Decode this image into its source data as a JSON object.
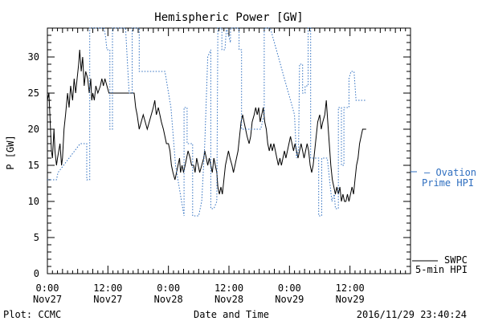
{
  "chart_data": {
    "type": "line",
    "title": "Hemispheric Power [GW]",
    "xlabel": "Date and Time",
    "ylabel": "P [GW]",
    "ylim": [
      0,
      34
    ],
    "xlim_hours": [
      0,
      72
    ],
    "yticks": [
      0,
      5,
      10,
      15,
      20,
      25,
      30
    ],
    "xticks": [
      {
        "h": 0,
        "time": "0:00",
        "date": "Nov27"
      },
      {
        "h": 12,
        "time": "12:00",
        "date": "Nov27"
      },
      {
        "h": 24,
        "time": "0:00",
        "date": "Nov28"
      },
      {
        "h": 36,
        "time": "12:00",
        "date": "Nov28"
      },
      {
        "h": 48,
        "time": "0:00",
        "date": "Nov29"
      },
      {
        "h": 60,
        "time": "12:00",
        "date": "Nov29"
      }
    ],
    "series": [
      {
        "name": "SWPC 5-min HPI",
        "color": "#000000",
        "points": [
          [
            0.0,
            24
          ],
          [
            0.3,
            25
          ],
          [
            0.5,
            22
          ],
          [
            0.8,
            17
          ],
          [
            1.0,
            16
          ],
          [
            1.3,
            20
          ],
          [
            1.5,
            17
          ],
          [
            1.8,
            15
          ],
          [
            2.0,
            16
          ],
          [
            2.5,
            18
          ],
          [
            2.8,
            15
          ],
          [
            3.0,
            16
          ],
          [
            3.3,
            20
          ],
          [
            3.6,
            22
          ],
          [
            4.0,
            25
          ],
          [
            4.3,
            23
          ],
          [
            4.6,
            26
          ],
          [
            5.0,
            24
          ],
          [
            5.3,
            27
          ],
          [
            5.6,
            25
          ],
          [
            5.9,
            27
          ],
          [
            6.2,
            29
          ],
          [
            6.4,
            31
          ],
          [
            6.7,
            28
          ],
          [
            7.0,
            30
          ],
          [
            7.3,
            26
          ],
          [
            7.6,
            28
          ],
          [
            8.0,
            27
          ],
          [
            8.3,
            25
          ],
          [
            8.6,
            27
          ],
          [
            8.8,
            24
          ],
          [
            9.0,
            25
          ],
          [
            9.3,
            24
          ],
          [
            9.6,
            26
          ],
          [
            10.0,
            25
          ],
          [
            10.5,
            26
          ],
          [
            10.8,
            27
          ],
          [
            11.1,
            26
          ],
          [
            11.4,
            27
          ],
          [
            11.8,
            26
          ],
          [
            12.2,
            25
          ],
          [
            13.5,
            25
          ],
          [
            14.5,
            25
          ],
          [
            15.5,
            25
          ],
          [
            16.5,
            25
          ],
          [
            17.2,
            25
          ],
          [
            17.5,
            23
          ],
          [
            17.8,
            22
          ],
          [
            18.2,
            20
          ],
          [
            18.6,
            21
          ],
          [
            19.0,
            22
          ],
          [
            19.4,
            21
          ],
          [
            19.8,
            20
          ],
          [
            20.2,
            21
          ],
          [
            20.6,
            22
          ],
          [
            21.0,
            23
          ],
          [
            21.3,
            24
          ],
          [
            21.6,
            22
          ],
          [
            22.0,
            23
          ],
          [
            22.3,
            22
          ],
          [
            22.6,
            21
          ],
          [
            23.0,
            20
          ],
          [
            23.3,
            19
          ],
          [
            23.6,
            18
          ],
          [
            24.0,
            18
          ],
          [
            24.3,
            17
          ],
          [
            24.6,
            15
          ],
          [
            24.9,
            14
          ],
          [
            25.3,
            13
          ],
          [
            25.6,
            14
          ],
          [
            25.9,
            15
          ],
          [
            26.2,
            16
          ],
          [
            26.4,
            14
          ],
          [
            26.7,
            15
          ],
          [
            27.0,
            14
          ],
          [
            27.3,
            15
          ],
          [
            27.6,
            16
          ],
          [
            27.9,
            17
          ],
          [
            28.3,
            16
          ],
          [
            28.6,
            15
          ],
          [
            29.0,
            15
          ],
          [
            29.3,
            14
          ],
          [
            29.6,
            16
          ],
          [
            29.9,
            15
          ],
          [
            30.2,
            14
          ],
          [
            30.6,
            15
          ],
          [
            31.0,
            16
          ],
          [
            31.2,
            17
          ],
          [
            31.5,
            16
          ],
          [
            31.8,
            15
          ],
          [
            32.1,
            16
          ],
          [
            32.4,
            15
          ],
          [
            32.7,
            14
          ],
          [
            33.0,
            16
          ],
          [
            33.3,
            15
          ],
          [
            33.6,
            14
          ],
          [
            33.8,
            12
          ],
          [
            34.1,
            11
          ],
          [
            34.4,
            12
          ],
          [
            34.7,
            11
          ],
          [
            35.0,
            13
          ],
          [
            35.3,
            15
          ],
          [
            35.6,
            16
          ],
          [
            35.9,
            17
          ],
          [
            36.2,
            16
          ],
          [
            36.6,
            15
          ],
          [
            36.9,
            14
          ],
          [
            37.2,
            15
          ],
          [
            37.5,
            16
          ],
          [
            37.8,
            17
          ],
          [
            38.1,
            19
          ],
          [
            38.4,
            21
          ],
          [
            38.7,
            22
          ],
          [
            39.0,
            21
          ],
          [
            39.3,
            20
          ],
          [
            39.6,
            19
          ],
          [
            40.0,
            18
          ],
          [
            40.3,
            19
          ],
          [
            40.6,
            21
          ],
          [
            41.0,
            22
          ],
          [
            41.3,
            23
          ],
          [
            41.6,
            22
          ],
          [
            41.9,
            23
          ],
          [
            42.2,
            21
          ],
          [
            42.5,
            22
          ],
          [
            42.8,
            23
          ],
          [
            43.1,
            21
          ],
          [
            43.4,
            20
          ],
          [
            43.7,
            18
          ],
          [
            44.0,
            17
          ],
          [
            44.3,
            18
          ],
          [
            44.6,
            17
          ],
          [
            44.9,
            18
          ],
          [
            45.2,
            17
          ],
          [
            45.5,
            16
          ],
          [
            45.8,
            15
          ],
          [
            46.1,
            16
          ],
          [
            46.4,
            15
          ],
          [
            46.7,
            16
          ],
          [
            47.0,
            17
          ],
          [
            47.3,
            16
          ],
          [
            47.6,
            17
          ],
          [
            47.9,
            18
          ],
          [
            48.2,
            19
          ],
          [
            48.5,
            18
          ],
          [
            48.8,
            17
          ],
          [
            49.1,
            18
          ],
          [
            49.4,
            17
          ],
          [
            49.7,
            16
          ],
          [
            50.0,
            17
          ],
          [
            50.3,
            18
          ],
          [
            50.6,
            17
          ],
          [
            50.9,
            16
          ],
          [
            51.2,
            17
          ],
          [
            51.5,
            18
          ],
          [
            51.8,
            17
          ],
          [
            52.1,
            15
          ],
          [
            52.4,
            14
          ],
          [
            52.7,
            15
          ],
          [
            53.0,
            17
          ],
          [
            53.3,
            19
          ],
          [
            53.6,
            21
          ],
          [
            54.0,
            22
          ],
          [
            54.3,
            20
          ],
          [
            54.6,
            21
          ],
          [
            55.0,
            22
          ],
          [
            55.3,
            24
          ],
          [
            55.6,
            21
          ],
          [
            55.9,
            18
          ],
          [
            56.2,
            15
          ],
          [
            56.5,
            13
          ],
          [
            56.8,
            12
          ],
          [
            57.1,
            11
          ],
          [
            57.4,
            12
          ],
          [
            57.7,
            11
          ],
          [
            58.0,
            12
          ],
          [
            58.3,
            10
          ],
          [
            58.6,
            11
          ],
          [
            58.9,
            10
          ],
          [
            59.2,
            10
          ],
          [
            59.5,
            11
          ],
          [
            59.8,
            10
          ],
          [
            60.1,
            11
          ],
          [
            60.4,
            12
          ],
          [
            60.7,
            11
          ],
          [
            61.0,
            13
          ],
          [
            61.3,
            15
          ],
          [
            61.6,
            16
          ],
          [
            61.9,
            18
          ],
          [
            62.2,
            19
          ],
          [
            62.5,
            20
          ],
          [
            62.8,
            20
          ],
          [
            63.2,
            20
          ]
        ]
      },
      {
        "name": "Ovation Prime HPI",
        "color": "#2f6fc0",
        "points": [
          [
            0.0,
            13
          ],
          [
            1.8,
            13
          ],
          [
            2.1,
            14
          ],
          [
            6.5,
            18
          ],
          [
            7.8,
            18
          ],
          [
            7.8,
            13
          ],
          [
            8.4,
            13
          ],
          [
            8.4,
            34
          ],
          [
            11.2,
            34
          ],
          [
            11.5,
            33
          ],
          [
            11.8,
            31
          ],
          [
            12.4,
            31
          ],
          [
            12.4,
            20
          ],
          [
            12.9,
            20
          ],
          [
            12.9,
            34
          ],
          [
            15.0,
            34
          ],
          [
            15.5,
            34
          ],
          [
            16.2,
            25
          ],
          [
            16.8,
            25
          ],
          [
            16.8,
            34
          ],
          [
            18.2,
            34
          ],
          [
            18.2,
            28
          ],
          [
            23.3,
            28
          ],
          [
            24.5,
            23
          ],
          [
            25.4,
            15
          ],
          [
            26.6,
            10
          ],
          [
            27.1,
            8
          ],
          [
            27.1,
            23
          ],
          [
            27.7,
            23
          ],
          [
            27.7,
            18
          ],
          [
            28.8,
            18
          ],
          [
            28.8,
            8
          ],
          [
            30.0,
            8
          ],
          [
            30.6,
            10
          ],
          [
            31.2,
            18
          ],
          [
            31.8,
            30
          ],
          [
            32.4,
            31
          ],
          [
            32.4,
            9
          ],
          [
            33.0,
            9
          ],
          [
            33.6,
            10
          ],
          [
            33.8,
            34
          ],
          [
            34.6,
            34
          ],
          [
            34.6,
            31
          ],
          [
            35.2,
            31
          ],
          [
            35.5,
            34
          ],
          [
            36.3,
            32
          ],
          [
            36.3,
            34
          ],
          [
            38.0,
            34
          ],
          [
            38.0,
            31
          ],
          [
            38.5,
            31
          ],
          [
            38.5,
            20
          ],
          [
            40.0,
            20
          ],
          [
            42.3,
            20
          ],
          [
            43.0,
            22
          ],
          [
            43.0,
            34
          ],
          [
            44.2,
            34
          ],
          [
            49.0,
            22
          ],
          [
            49.4,
            16
          ],
          [
            49.8,
            17
          ],
          [
            50.0,
            29
          ],
          [
            50.6,
            29
          ],
          [
            50.6,
            25
          ],
          [
            51.1,
            25
          ],
          [
            51.1,
            26
          ],
          [
            51.7,
            26
          ],
          [
            51.7,
            34
          ],
          [
            52.2,
            34
          ],
          [
            52.2,
            16
          ],
          [
            53.8,
            16
          ],
          [
            53.8,
            8
          ],
          [
            54.4,
            8
          ],
          [
            54.4,
            16
          ],
          [
            55.5,
            16
          ],
          [
            56.4,
            10
          ],
          [
            56.9,
            11
          ],
          [
            57.1,
            9
          ],
          [
            57.7,
            9
          ],
          [
            57.7,
            23
          ],
          [
            58.3,
            23
          ],
          [
            58.3,
            15
          ],
          [
            58.8,
            15
          ],
          [
            58.8,
            23
          ],
          [
            59.8,
            23
          ],
          [
            59.8,
            27
          ],
          [
            60.2,
            28
          ],
          [
            60.8,
            28
          ],
          [
            61.2,
            24
          ],
          [
            63.2,
            24
          ]
        ]
      }
    ],
    "legend": [
      {
        "line1": "— Ovation",
        "line2": "Prime HPI",
        "position": "right-middle",
        "color": "#2f6fc0"
      },
      {
        "line1": "SWPC",
        "line2": "5-min HPI",
        "position": "right-bottom",
        "color": "#000000"
      }
    ],
    "footer": {
      "left": "Plot: CCMC",
      "center": "Date and Time",
      "right": "2016/11/29 23:40:24"
    }
  }
}
